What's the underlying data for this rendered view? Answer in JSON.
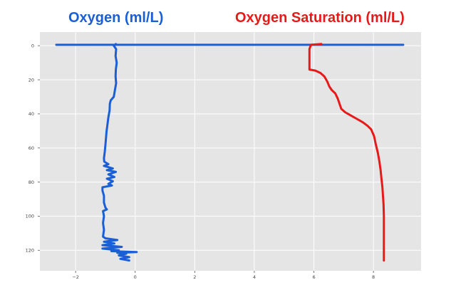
{
  "chart_data": {
    "type": "line",
    "title": "",
    "xlabel": "",
    "ylabel": "",
    "xlim": [
      -3.2,
      9.6
    ],
    "ylim": [
      132,
      -8
    ],
    "y_inverted": true,
    "grid": true,
    "x_ticks": [
      -2,
      0,
      2,
      4,
      6,
      8
    ],
    "y_ticks": [
      0,
      20,
      40,
      60,
      80,
      100,
      120
    ],
    "annotations": [
      {
        "id": "oxygen",
        "text": "Oxygen (ml/L)",
        "color": "#1a5fd6"
      },
      {
        "id": "saturation",
        "text": "Oxygen Saturation (ml/L)",
        "color": "#e81919"
      }
    ],
    "series": [
      {
        "id": "oxygen",
        "color": "#1a5fd6",
        "points": [
          [
            -0.65,
            -1
          ],
          [
            -0.72,
            0
          ],
          [
            -0.64,
            2
          ],
          [
            -0.66,
            6
          ],
          [
            -0.62,
            10
          ],
          [
            -0.65,
            14
          ],
          [
            -0.66,
            18
          ],
          [
            -0.64,
            22
          ],
          [
            -0.68,
            26
          ],
          [
            -0.72,
            30
          ],
          [
            -0.82,
            32
          ],
          [
            -0.85,
            34
          ],
          [
            -0.86,
            38
          ],
          [
            -0.9,
            42
          ],
          [
            -0.93,
            46
          ],
          [
            -0.96,
            50
          ],
          [
            -0.98,
            54
          ],
          [
            -1.0,
            58
          ],
          [
            -1.02,
            62
          ],
          [
            -1.05,
            66
          ],
          [
            -1.04,
            68
          ],
          [
            -0.9,
            69.5
          ],
          [
            -1.05,
            70.5
          ],
          [
            -0.75,
            72
          ],
          [
            -0.95,
            73
          ],
          [
            -0.65,
            74
          ],
          [
            -0.9,
            75.5
          ],
          [
            -0.7,
            77
          ],
          [
            -0.95,
            78
          ],
          [
            -0.75,
            79.5
          ],
          [
            -0.9,
            81
          ],
          [
            -0.78,
            82
          ],
          [
            -1.1,
            83
          ],
          [
            -1.1,
            85
          ],
          [
            -1.05,
            88
          ],
          [
            -1.05,
            92
          ],
          [
            -1.0,
            95
          ],
          [
            -0.95,
            96
          ],
          [
            -1.08,
            97
          ],
          [
            -1.05,
            100
          ],
          [
            -1.08,
            104
          ],
          [
            -1.05,
            108
          ],
          [
            -1.08,
            112
          ],
          [
            -1.0,
            113
          ],
          [
            -0.6,
            114
          ],
          [
            -1.05,
            115
          ],
          [
            -0.7,
            116
          ],
          [
            -1.1,
            117
          ],
          [
            -0.45,
            118
          ],
          [
            -1.1,
            119
          ],
          [
            -0.55,
            120
          ],
          [
            -0.8,
            120.5
          ],
          [
            0.05,
            121
          ],
          [
            -0.6,
            121.5
          ],
          [
            -0.3,
            122
          ],
          [
            -0.55,
            123
          ],
          [
            -0.2,
            124
          ],
          [
            -0.5,
            125
          ],
          [
            -0.2,
            126
          ]
        ]
      },
      {
        "id": "oxygen_surface",
        "color": "#1a5fd6",
        "points": [
          [
            -2.65,
            -0.5
          ],
          [
            9.0,
            -0.5
          ]
        ]
      },
      {
        "id": "saturation",
        "color": "#e81919",
        "points": [
          [
            6.25,
            -1
          ],
          [
            5.9,
            -0.5
          ],
          [
            5.85,
            2
          ],
          [
            5.85,
            6
          ],
          [
            5.85,
            10
          ],
          [
            5.85,
            14
          ],
          [
            6.05,
            14.6
          ],
          [
            6.22,
            16
          ],
          [
            6.35,
            18
          ],
          [
            6.45,
            21
          ],
          [
            6.52,
            24
          ],
          [
            6.6,
            26
          ],
          [
            6.72,
            28
          ],
          [
            6.8,
            31
          ],
          [
            6.88,
            35
          ],
          [
            6.92,
            37
          ],
          [
            7.05,
            39
          ],
          [
            7.25,
            41
          ],
          [
            7.45,
            43
          ],
          [
            7.65,
            45
          ],
          [
            7.8,
            47
          ],
          [
            7.92,
            49
          ],
          [
            8.02,
            53
          ],
          [
            8.08,
            58
          ],
          [
            8.15,
            63
          ],
          [
            8.2,
            68
          ],
          [
            8.24,
            73
          ],
          [
            8.27,
            78
          ],
          [
            8.3,
            83
          ],
          [
            8.32,
            88
          ],
          [
            8.34,
            93
          ],
          [
            8.35,
            100
          ],
          [
            8.35,
            110
          ],
          [
            8.35,
            118
          ],
          [
            8.35,
            126
          ]
        ]
      }
    ]
  }
}
